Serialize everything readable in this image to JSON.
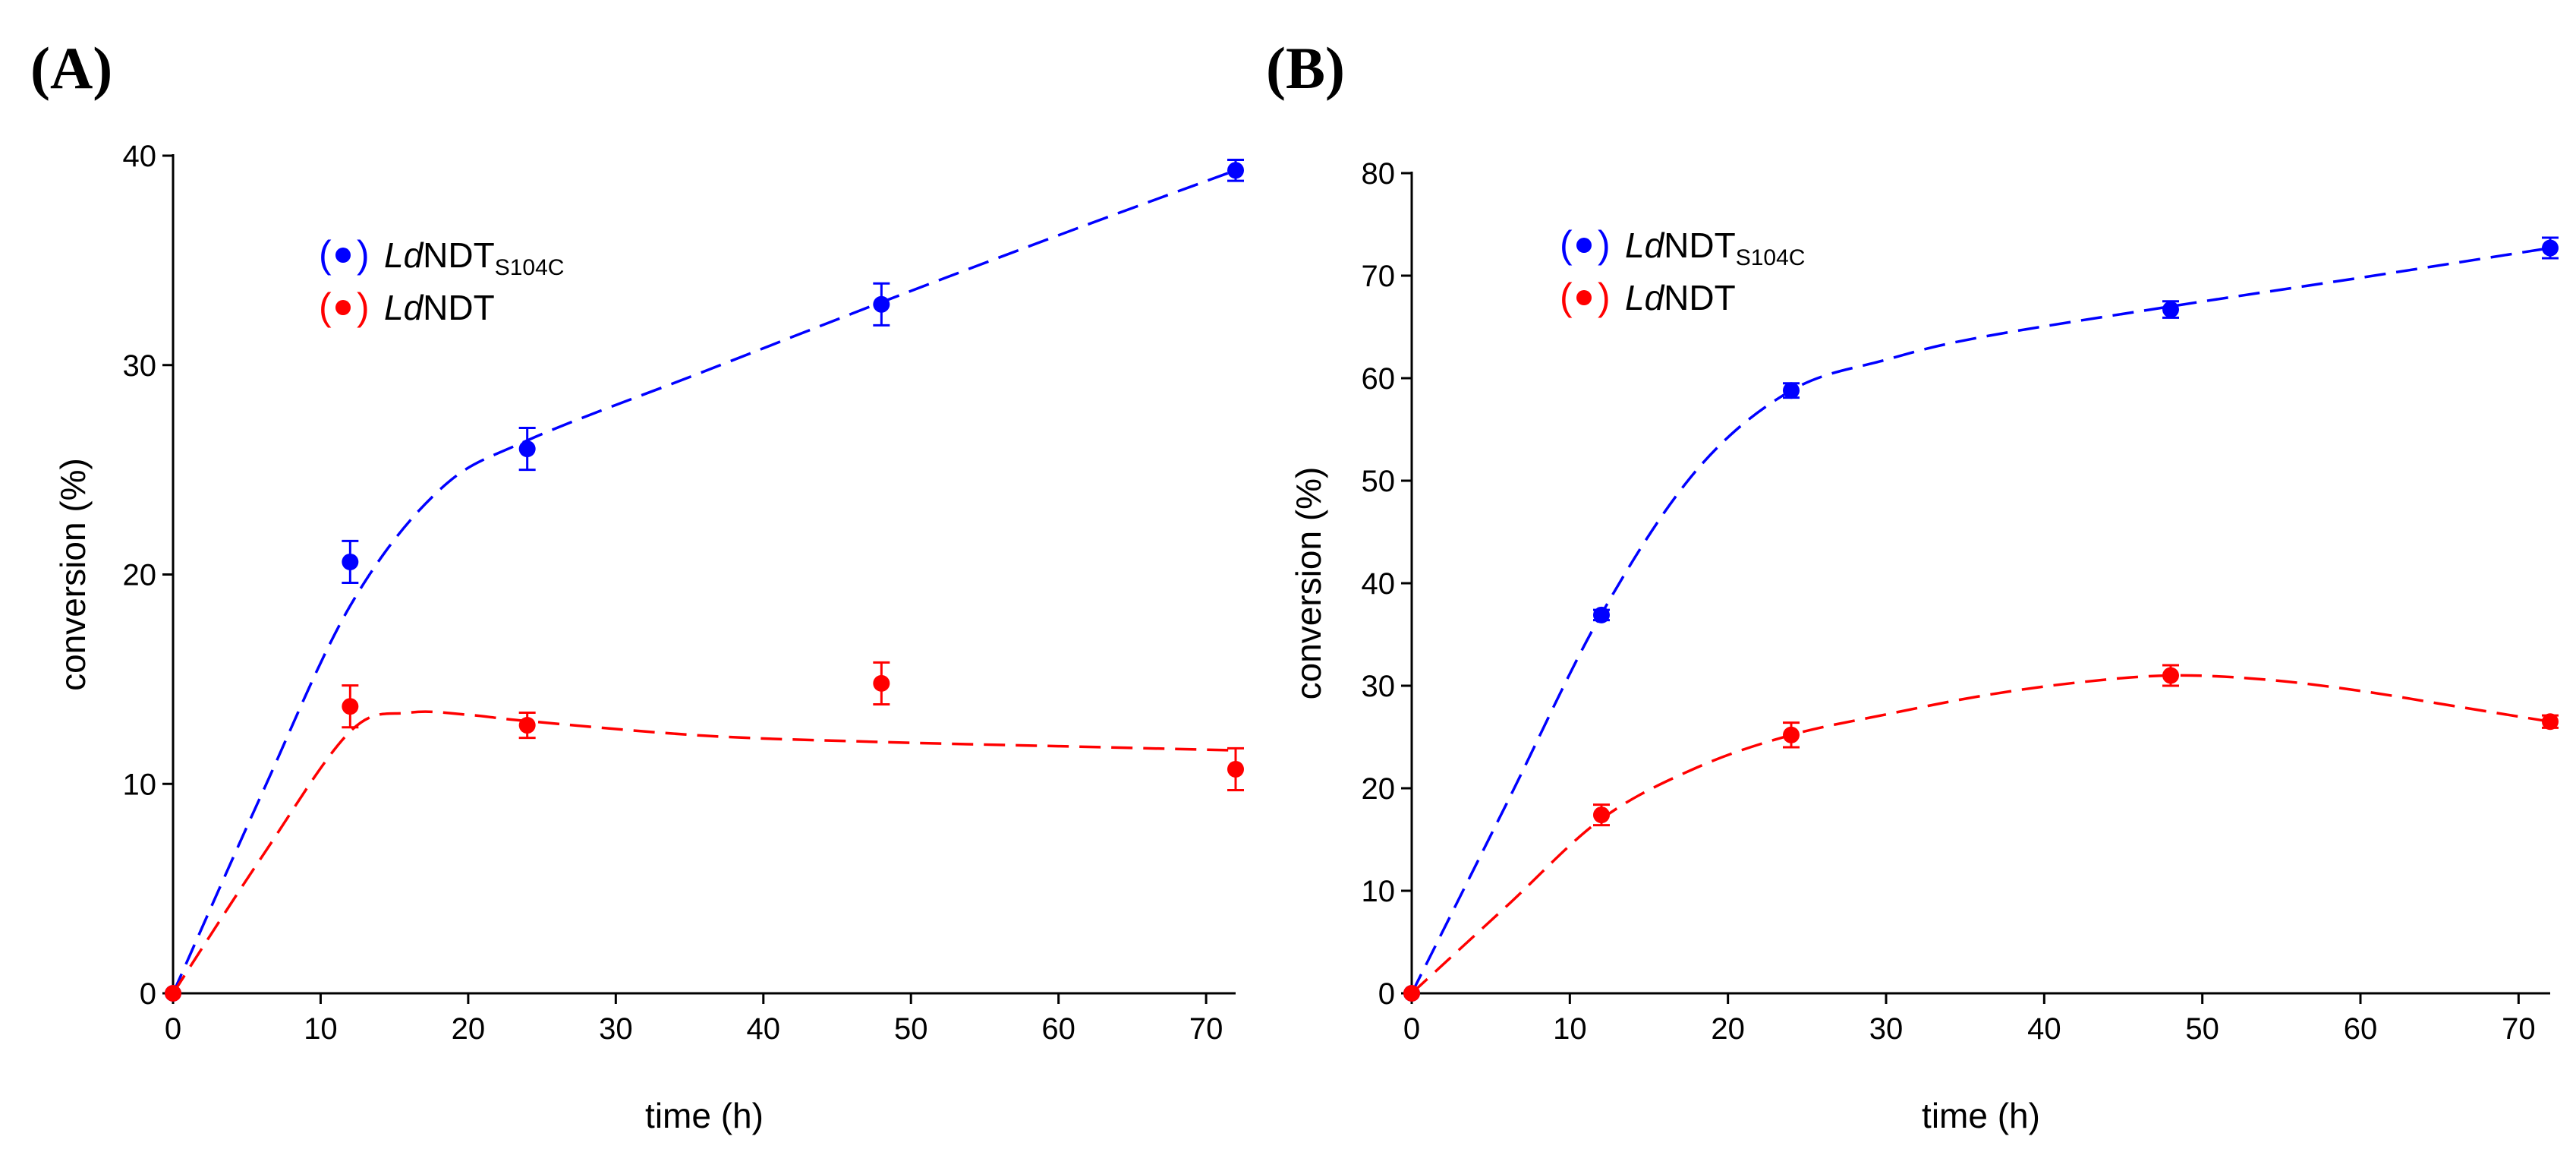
{
  "chart_data": [
    {
      "panel_label": "(A)",
      "type": "scatter",
      "title": "",
      "xlabel": "time (h)",
      "ylabel": "conversion (%)",
      "xlim": [
        0,
        72
      ],
      "ylim": [
        0,
        40
      ],
      "xticks": [
        0,
        10,
        20,
        30,
        40,
        50,
        60,
        70
      ],
      "yticks": [
        0,
        10,
        20,
        30,
        40
      ],
      "legend_placement": "upper-left",
      "series": [
        {
          "name": "LdNDT_S104C",
          "legend_italic": "Ld",
          "legend_main": "NDT",
          "legend_sub": "S104C",
          "color": "#0000ff",
          "x": [
            0,
            12,
            24,
            48,
            72
          ],
          "y": [
            0,
            20.6,
            26.0,
            32.9,
            39.3
          ],
          "err": [
            0,
            1.0,
            1.0,
            1.0,
            0.5
          ],
          "fit_x": [
            0,
            6,
            12,
            18,
            24,
            36,
            48,
            60,
            72
          ],
          "fit_y": [
            0,
            9.5,
            18.5,
            24.0,
            26.4,
            29.7,
            33.0,
            36.2,
            39.3
          ]
        },
        {
          "name": "LdNDT",
          "legend_italic": "Ld",
          "legend_main": "NDT",
          "legend_sub": "",
          "color": "#ff0000",
          "x": [
            0,
            12,
            24,
            48,
            72
          ],
          "y": [
            0,
            13.7,
            12.8,
            14.8,
            10.7
          ],
          "err": [
            0,
            1.0,
            0.6,
            1.0,
            1.0
          ],
          "fit_x": [
            0,
            6,
            12,
            16,
            20,
            24,
            36,
            48,
            60,
            72
          ],
          "fit_y": [
            0,
            6.5,
            12.5,
            13.4,
            13.3,
            13.0,
            12.3,
            12.0,
            11.8,
            11.6
          ]
        }
      ]
    },
    {
      "panel_label": "(B)",
      "type": "scatter",
      "title": "",
      "xlabel": "time (h)",
      "ylabel": "conversion (%)",
      "xlim": [
        0,
        72
      ],
      "ylim": [
        0,
        80
      ],
      "xticks": [
        0,
        10,
        20,
        30,
        40,
        50,
        60,
        70
      ],
      "yticks": [
        0,
        10,
        20,
        30,
        40,
        50,
        60,
        70,
        80
      ],
      "legend_placement": "upper-left",
      "series": [
        {
          "name": "LdNDT_S104C",
          "legend_italic": "Ld",
          "legend_main": "NDT",
          "legend_sub": "S104C",
          "color": "#0000ff",
          "x": [
            0,
            12,
            24,
            48,
            72
          ],
          "y": [
            0,
            36.9,
            58.8,
            66.7,
            72.7
          ],
          "err": [
            0,
            0.5,
            0.7,
            0.8,
            1.0
          ],
          "fit_x": [
            0,
            6,
            12,
            18,
            24,
            30,
            36,
            48,
            60,
            72
          ],
          "fit_y": [
            0,
            18.5,
            37.0,
            51.0,
            58.8,
            61.8,
            64.0,
            67.0,
            69.8,
            72.7
          ]
        },
        {
          "name": "LdNDT",
          "legend_italic": "Ld",
          "legend_main": "NDT",
          "legend_sub": "",
          "color": "#ff0000",
          "x": [
            0,
            12,
            24,
            48,
            72
          ],
          "y": [
            0,
            17.4,
            25.2,
            31.0,
            26.5
          ],
          "err": [
            0,
            1.0,
            1.2,
            1.0,
            0.6
          ],
          "fit_x": [
            0,
            6,
            12,
            18,
            24,
            30,
            36,
            42,
            48,
            54,
            60,
            66,
            72
          ],
          "fit_y": [
            0,
            8.5,
            17.0,
            22.0,
            25.2,
            27.2,
            29.0,
            30.3,
            31.0,
            30.6,
            29.5,
            28.0,
            26.5
          ]
        }
      ]
    }
  ]
}
